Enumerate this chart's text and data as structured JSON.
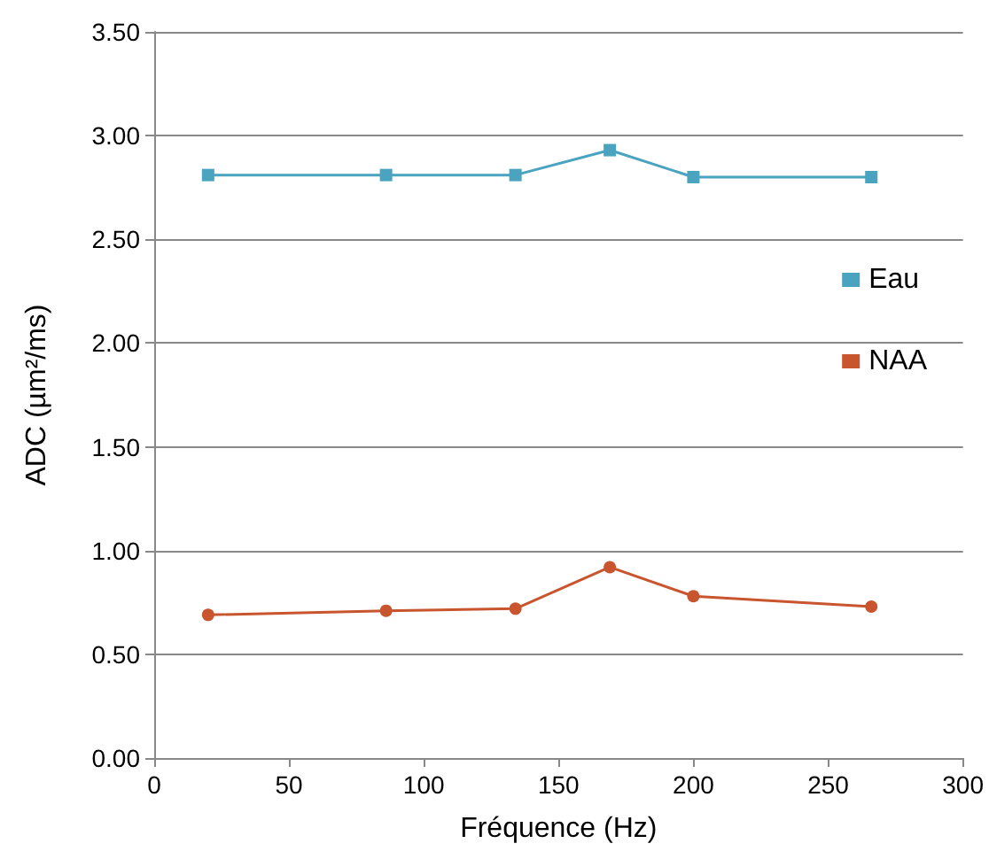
{
  "chart_data": {
    "type": "line",
    "xlabel": "Fréquence (Hz)",
    "ylabel": "ADC (µm²/ms)",
    "x": [
      20,
      86,
      134,
      169,
      200,
      266
    ],
    "series": [
      {
        "name": "Eau",
        "color": "#4aa3bf",
        "marker": "square",
        "values": [
          2.81,
          2.81,
          2.81,
          2.93,
          2.8,
          2.8
        ]
      },
      {
        "name": "NAA",
        "color": "#c8552e",
        "marker": "circle",
        "values": [
          0.69,
          0.71,
          0.72,
          0.92,
          0.78,
          0.73
        ]
      }
    ],
    "xlim": [
      0,
      300
    ],
    "xticks": [
      0,
      50,
      100,
      150,
      200,
      250,
      300
    ],
    "ylim": [
      0,
      3.5
    ],
    "yticks": [
      {
        "value": 0,
        "label": "0.00"
      },
      {
        "value": 0.5,
        "label": "0.50"
      },
      {
        "value": 1,
        "label": "1.00"
      },
      {
        "value": 1.5,
        "label": "1.50"
      },
      {
        "value": 2,
        "label": "2.00"
      },
      {
        "value": 2.5,
        "label": "2.50"
      },
      {
        "value": 3,
        "label": "3.00"
      },
      {
        "value": 3.5,
        "label": "3.50"
      }
    ],
    "grid": "y",
    "legend": "right",
    "line_style": "solid"
  }
}
